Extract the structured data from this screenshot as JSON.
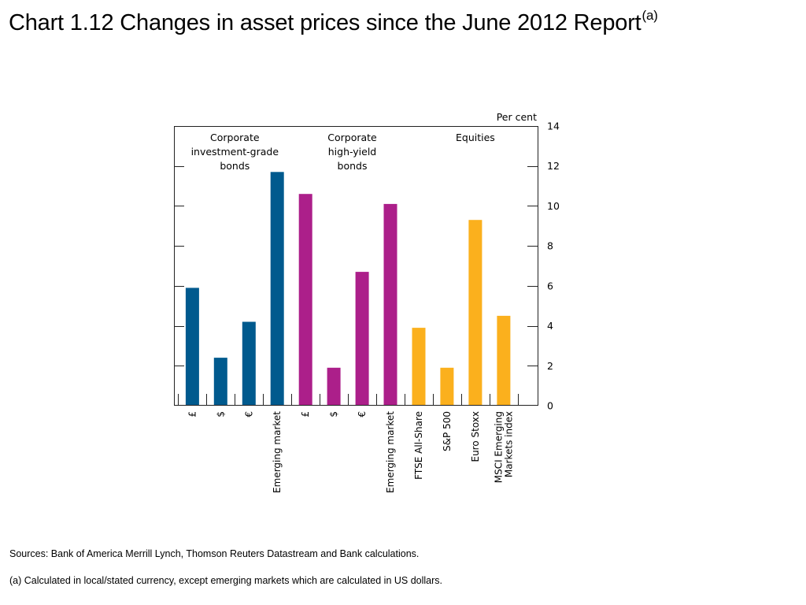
{
  "title": {
    "text": "Chart 1.12  Changes in asset prices since the June 2012 Report",
    "superscript": "(a)"
  },
  "chart_data": {
    "type": "bar",
    "unit_label": "Per cent",
    "ylim": [
      0,
      14
    ],
    "yticks": [
      0,
      2,
      4,
      6,
      8,
      10,
      12,
      14
    ],
    "axis_side": "right",
    "grid": false,
    "groups": [
      {
        "label_lines": [
          "Corporate",
          "investment-grade",
          "bonds"
        ],
        "color": "#005a8e"
      },
      {
        "label_lines": [
          "Corporate",
          "high-yield",
          "bonds"
        ],
        "color": "#ac1f8a"
      },
      {
        "label_lines": [
          "Equities"
        ],
        "color": "#fbb01d"
      }
    ],
    "categories": [
      {
        "label": [
          "£"
        ],
        "value": 5.9,
        "group": 0
      },
      {
        "label": [
          "$"
        ],
        "value": 2.4,
        "group": 0
      },
      {
        "label": [
          "€"
        ],
        "value": 4.2,
        "group": 0
      },
      {
        "label": [
          "Emerging market"
        ],
        "value": 11.7,
        "group": 0
      },
      {
        "label": [
          "£"
        ],
        "value": 10.6,
        "group": 1
      },
      {
        "label": [
          "$"
        ],
        "value": 1.9,
        "group": 1
      },
      {
        "label": [
          "€"
        ],
        "value": 6.7,
        "group": 1
      },
      {
        "label": [
          "Emerging market"
        ],
        "value": 10.1,
        "group": 1
      },
      {
        "label": [
          "FTSE All-Share"
        ],
        "value": 3.9,
        "group": 2
      },
      {
        "label": [
          "S&P 500"
        ],
        "value": 1.9,
        "group": 2
      },
      {
        "label": [
          "Euro Stoxx"
        ],
        "value": 9.3,
        "group": 2
      },
      {
        "label": [
          "MSCI Emerging",
          "Markets index"
        ],
        "value": 4.5,
        "group": 2
      }
    ]
  },
  "sources": "Sources:  Bank of America Merrill Lynch, Thomson Reuters Datastream and Bank calculations.",
  "footnote": "(a)  Calculated in local/stated currency, except emerging markets which are calculated in US dollars."
}
